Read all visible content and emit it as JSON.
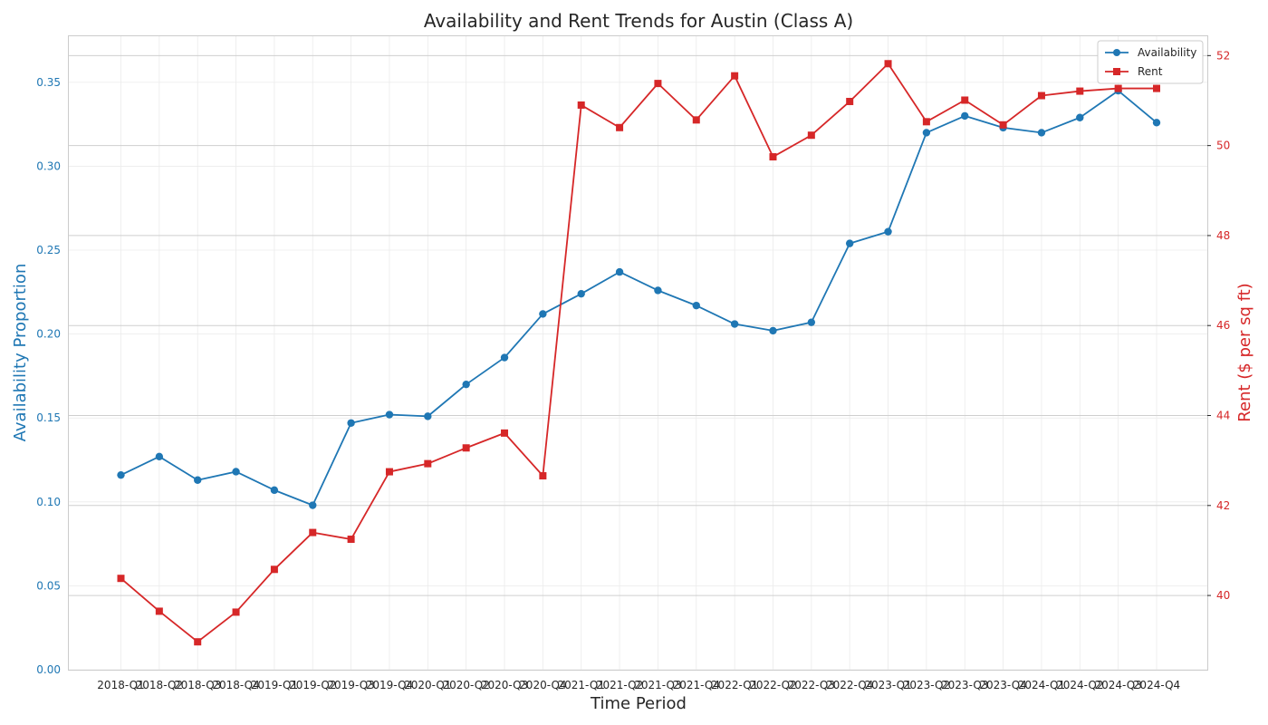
{
  "chart_data": {
    "type": "line",
    "title": "Availability and Rent Trends for Austin (Class A)",
    "xlabel": "Time Period",
    "categories": [
      "2018-Q1",
      "2018-Q2",
      "2018-Q3",
      "2018-Q4",
      "2019-Q1",
      "2019-Q2",
      "2019-Q3",
      "2019-Q4",
      "2020-Q1",
      "2020-Q2",
      "2020-Q3",
      "2020-Q4",
      "2021-Q1",
      "2021-Q2",
      "2021-Q3",
      "2021-Q4",
      "2022-Q1",
      "2022-Q2",
      "2022-Q3",
      "2022-Q4",
      "2023-Q1",
      "2023-Q2",
      "2023-Q3",
      "2023-Q4",
      "2024-Q1",
      "2024-Q2",
      "2024-Q3",
      "2024-Q4"
    ],
    "series": [
      {
        "name": "Availability",
        "axis": "left",
        "color": "#1f77b4",
        "marker": "circle",
        "values": [
          0.116,
          0.127,
          0.113,
          0.118,
          0.107,
          0.098,
          0.147,
          0.152,
          0.151,
          0.17,
          0.186,
          0.212,
          0.224,
          0.237,
          0.226,
          0.217,
          0.206,
          0.202,
          0.207,
          0.254,
          0.261,
          0.32,
          0.33,
          0.323,
          0.32,
          0.329,
          0.345,
          0.326
        ]
      },
      {
        "name": "Rent",
        "axis": "right",
        "color": "#d62728",
        "marker": "square",
        "values": [
          40.38,
          39.65,
          38.97,
          39.63,
          40.58,
          41.4,
          41.25,
          42.75,
          42.93,
          43.28,
          43.61,
          42.66,
          50.9,
          50.4,
          51.38,
          50.57,
          51.55,
          49.75,
          50.23,
          50.98,
          51.82,
          50.53,
          51.01,
          50.46,
          51.11,
          51.21,
          51.27,
          51.27
        ]
      }
    ],
    "y_left": {
      "label": "Availability Proportion",
      "color": "#1f77b4",
      "ylim": [
        0.0,
        0.378
      ],
      "ticks": [
        0.0,
        0.05,
        0.1,
        0.15,
        0.2,
        0.25,
        0.3,
        0.35
      ],
      "tick_labels": [
        "0.00",
        "0.05",
        "0.10",
        "0.15",
        "0.20",
        "0.25",
        "0.30",
        "0.35"
      ]
    },
    "y_right": {
      "label": "Rent ($ per sq ft)",
      "color": "#d62728",
      "ylim": [
        38.35,
        52.45
      ],
      "ticks": [
        40,
        42,
        44,
        46,
        48,
        50,
        52
      ],
      "tick_labels": [
        "40",
        "42",
        "44",
        "46",
        "48",
        "50",
        "52"
      ]
    },
    "grid": true,
    "legend_position": "top-right"
  }
}
